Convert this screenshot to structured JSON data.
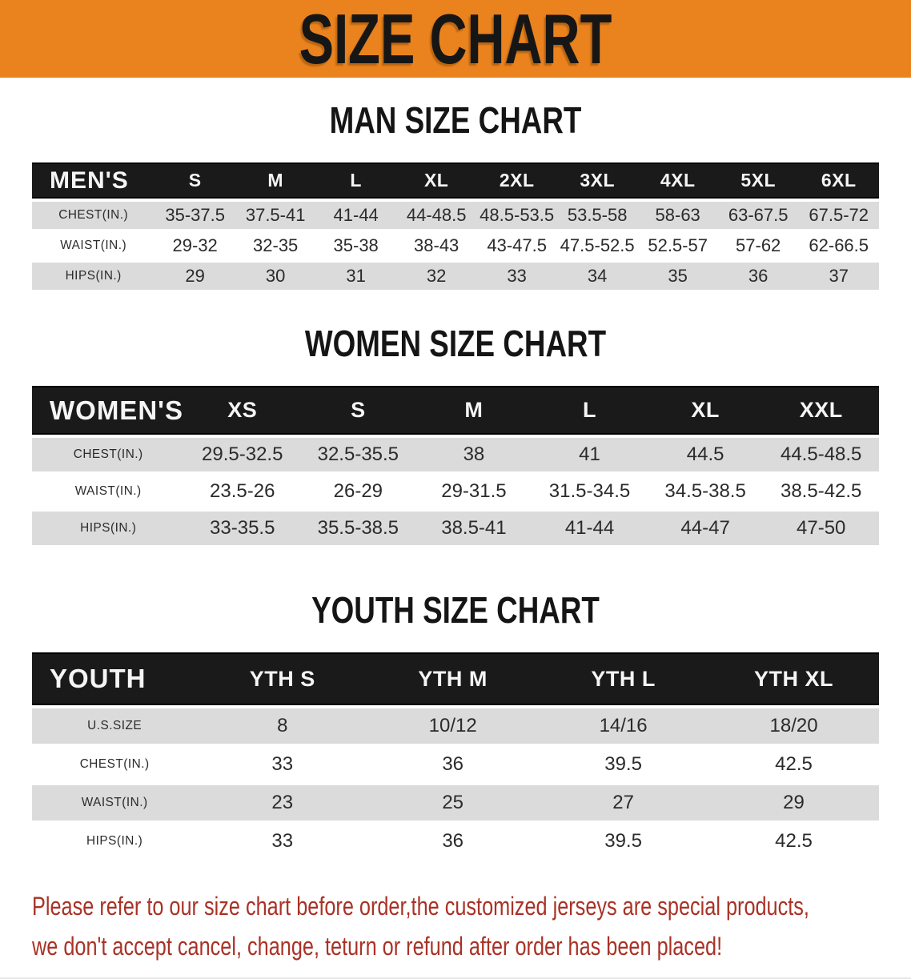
{
  "banner": {
    "title": "SIZE CHART"
  },
  "colors": {
    "banner_bg": "#EA831E",
    "header_bar": "#1A1A1A",
    "row_alt": "#DBDBDB",
    "notice_red": "#A93226",
    "title_black": "#151515"
  },
  "sections": [
    {
      "id": "man",
      "title": "MAN SIZE CHART",
      "header_label": "MEN'S",
      "columns": [
        "S",
        "M",
        "L",
        "XL",
        "2XL",
        "3XL",
        "4XL",
        "5XL",
        "6XL"
      ],
      "rows": [
        {
          "label": "CHEST(IN.)",
          "values": [
            "35-37.5",
            "37.5-41",
            "41-44",
            "44-48.5",
            "48.5-53.5",
            "53.5-58",
            "58-63",
            "63-67.5",
            "67.5-72"
          ]
        },
        {
          "label": "WAIST(IN.)",
          "values": [
            "29-32",
            "32-35",
            "35-38",
            "38-43",
            "43-47.5",
            "47.5-52.5",
            "52.5-57",
            "57-62",
            "62-66.5"
          ]
        },
        {
          "label": "HIPS(IN.)",
          "values": [
            "29",
            "30",
            "31",
            "32",
            "33",
            "34",
            "35",
            "36",
            "37"
          ]
        }
      ]
    },
    {
      "id": "women",
      "title": "WOMEN SIZE CHART",
      "header_label": "WOMEN'S",
      "columns": [
        "XS",
        "S",
        "M",
        "L",
        "XL",
        "XXL"
      ],
      "rows": [
        {
          "label": "CHEST(IN.)",
          "values": [
            "29.5-32.5",
            "32.5-35.5",
            "38",
            "41",
            "44.5",
            "44.5-48.5"
          ]
        },
        {
          "label": "WAIST(IN.)",
          "values": [
            "23.5-26",
            "26-29",
            "29-31.5",
            "31.5-34.5",
            "34.5-38.5",
            "38.5-42.5"
          ]
        },
        {
          "label": "HIPS(IN.)",
          "values": [
            "33-35.5",
            "35.5-38.5",
            "38.5-41",
            "41-44",
            "44-47",
            "47-50"
          ]
        }
      ]
    },
    {
      "id": "youth",
      "title": "YOUTH SIZE CHART",
      "header_label": "YOUTH",
      "columns": [
        "YTH S",
        "YTH M",
        "YTH L",
        "YTH XL"
      ],
      "rows": [
        {
          "label": "U.S.SIZE",
          "values": [
            "8",
            "10/12",
            "14/16",
            "18/20"
          ]
        },
        {
          "label": "CHEST(IN.)",
          "values": [
            "33",
            "36",
            "39.5",
            "42.5"
          ]
        },
        {
          "label": "WAIST(IN.)",
          "values": [
            "23",
            "25",
            "27",
            "29"
          ]
        },
        {
          "label": "HIPS(IN.)",
          "values": [
            "33",
            "36",
            "39.5",
            "42.5"
          ]
        }
      ]
    }
  ],
  "footer": {
    "line1": "Please refer to our size chart before order,the customized jerseys are special products,",
    "line2": "we don't accept cancel, change, teturn or refund after order has been placed!"
  }
}
